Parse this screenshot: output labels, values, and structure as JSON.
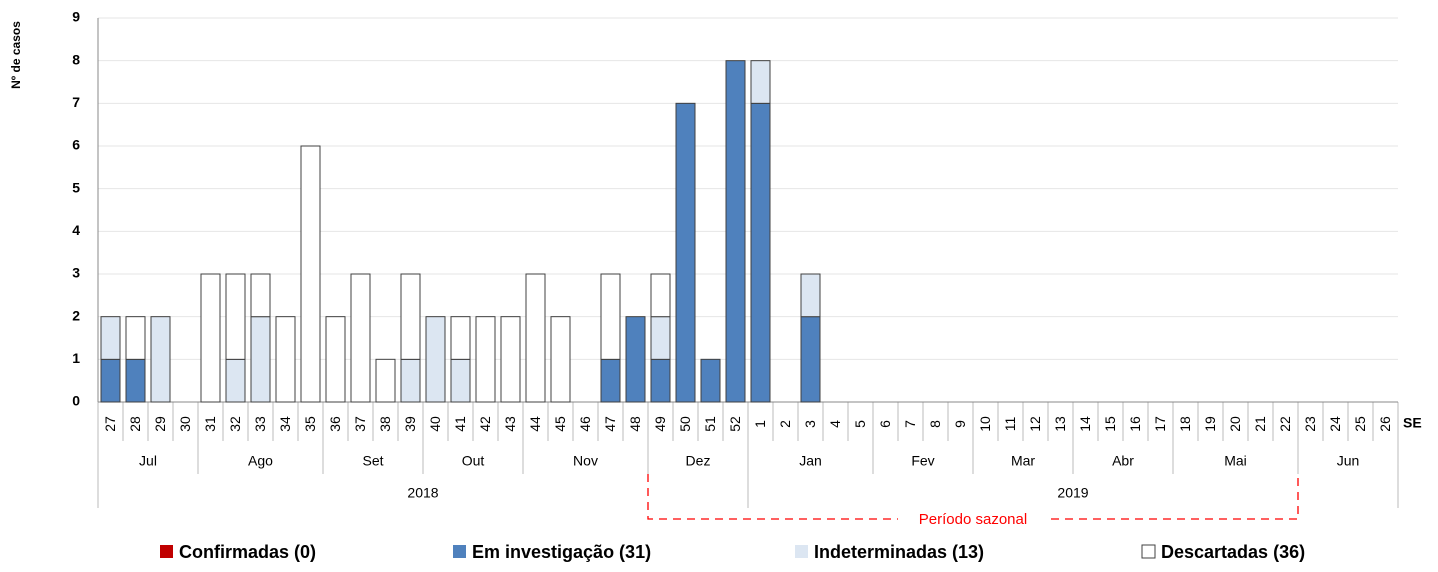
{
  "chart_data": {
    "type": "stacked-bar",
    "y_label": "Nº de casos",
    "x_label": "SE",
    "categories": [
      "27",
      "28",
      "29",
      "30",
      "31",
      "32",
      "33",
      "34",
      "35",
      "36",
      "37",
      "38",
      "39",
      "40",
      "41",
      "42",
      "43",
      "44",
      "45",
      "46",
      "47",
      "48",
      "49",
      "50",
      "51",
      "52",
      "1",
      "2",
      "3",
      "4",
      "5",
      "6",
      "7",
      "8",
      "9",
      "10",
      "11",
      "12",
      "13",
      "14",
      "15",
      "16",
      "17",
      "18",
      "19",
      "20",
      "21",
      "22",
      "23",
      "24",
      "25",
      "26"
    ],
    "months": [
      {
        "label": "Jul",
        "weeks": 4
      },
      {
        "label": "Ago",
        "weeks": 5
      },
      {
        "label": "Set",
        "weeks": 4
      },
      {
        "label": "Out",
        "weeks": 4
      },
      {
        "label": "Nov",
        "weeks": 5
      },
      {
        "label": "Dez",
        "weeks": 4
      },
      {
        "label": "Jan",
        "weeks": 5
      },
      {
        "label": "Fev",
        "weeks": 4
      },
      {
        "label": "Mar",
        "weeks": 4
      },
      {
        "label": "Abr",
        "weeks": 4
      },
      {
        "label": "Mai",
        "weeks": 5
      },
      {
        "label": "Jun",
        "weeks": 4
      }
    ],
    "years": [
      {
        "label": "2018",
        "weeks": 26
      },
      {
        "label": "2019",
        "weeks": 26
      }
    ],
    "annotation": {
      "text": "Período sazonal",
      "from": "49",
      "to": "22"
    },
    "series": [
      {
        "name": "Confirmadas (0)",
        "color": "#c00000",
        "values": [
          0,
          0,
          0,
          0,
          0,
          0,
          0,
          0,
          0,
          0,
          0,
          0,
          0,
          0,
          0,
          0,
          0,
          0,
          0,
          0,
          0,
          0,
          0,
          0,
          0,
          0,
          0,
          0,
          0,
          0,
          0,
          0,
          0,
          0,
          0,
          0,
          0,
          0,
          0,
          0,
          0,
          0,
          0,
          0,
          0,
          0,
          0,
          0,
          0,
          0,
          0,
          0
        ]
      },
      {
        "name": "Em investigação (31)",
        "color": "#4f81bd",
        "values": [
          1,
          1,
          0,
          0,
          0,
          0,
          0,
          0,
          0,
          0,
          0,
          0,
          0,
          0,
          0,
          0,
          0,
          0,
          0,
          0,
          1,
          2,
          1,
          7,
          1,
          8,
          7,
          0,
          2,
          0,
          0,
          0,
          0,
          0,
          0,
          0,
          0,
          0,
          0,
          0,
          0,
          0,
          0,
          0,
          0,
          0,
          0,
          0,
          0,
          0,
          0,
          0
        ]
      },
      {
        "name": "Indeterminadas (13)",
        "color": "#dce6f2",
        "values": [
          1,
          0,
          2,
          0,
          0,
          1,
          2,
          0,
          0,
          0,
          0,
          0,
          1,
          2,
          1,
          0,
          0,
          0,
          0,
          0,
          0,
          0,
          1,
          0,
          0,
          0,
          1,
          0,
          1,
          0,
          0,
          0,
          0,
          0,
          0,
          0,
          0,
          0,
          0,
          0,
          0,
          0,
          0,
          0,
          0,
          0,
          0,
          0,
          0,
          0,
          0,
          0
        ]
      },
      {
        "name": "Descartadas (36)",
        "color": "#ffffff",
        "values": [
          0,
          1,
          0,
          0,
          3,
          2,
          1,
          2,
          6,
          2,
          3,
          1,
          2,
          0,
          1,
          2,
          2,
          3,
          2,
          0,
          2,
          0,
          1,
          0,
          0,
          0,
          0,
          0,
          0,
          0,
          0,
          0,
          0,
          0,
          0,
          0,
          0,
          0,
          0,
          0,
          0,
          0,
          0,
          0,
          0,
          0,
          0,
          0,
          0,
          0,
          0,
          0
        ]
      }
    ],
    "ylim": [
      0,
      9
    ],
    "yticks": [
      0,
      1,
      2,
      3,
      4,
      5,
      6,
      7,
      8,
      9
    ],
    "grid": true
  }
}
